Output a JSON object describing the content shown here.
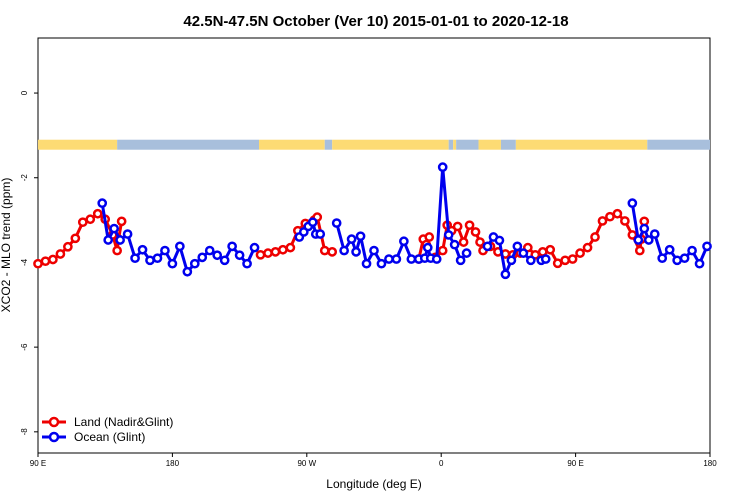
{
  "chart_data": {
    "type": "line",
    "title": "42.5N-47.5N October (Ver 10)   2015-01-01 to 2020-12-18",
    "xlabel": "Longitude (deg E)",
    "ylabel": "XCO2 - MLO trend (ppm)",
    "xlim": [
      90,
      540
    ],
    "ylim": [
      -8.5,
      1.3
    ],
    "x_ticks": [
      {
        "value": 90,
        "label": "90 E"
      },
      {
        "value": 180,
        "label": "180"
      },
      {
        "value": 270,
        "label": "90 W"
      },
      {
        "value": 360,
        "label": "0"
      },
      {
        "value": 450,
        "label": "90 E"
      },
      {
        "value": 540,
        "label": "180"
      }
    ],
    "y_ticks": [
      {
        "value": 0,
        "label": "0"
      },
      {
        "value": -2,
        "label": "-2"
      },
      {
        "value": -4,
        "label": "-4"
      },
      {
        "value": -6,
        "label": "-6"
      },
      {
        "value": -8,
        "label": "-8"
      }
    ],
    "landmask_y": -1.22,
    "landmask": [
      {
        "start": 90,
        "end": 143,
        "type": "land"
      },
      {
        "start": 143,
        "end": 238,
        "type": "ocean"
      },
      {
        "start": 238,
        "end": 282,
        "type": "land"
      },
      {
        "start": 282,
        "end": 287,
        "type": "ocean"
      },
      {
        "start": 287,
        "end": 365,
        "type": "land"
      },
      {
        "start": 365,
        "end": 368,
        "type": "ocean"
      },
      {
        "start": 368,
        "end": 370,
        "type": "land"
      },
      {
        "start": 370,
        "end": 385,
        "type": "ocean"
      },
      {
        "start": 385,
        "end": 400,
        "type": "land"
      },
      {
        "start": 400,
        "end": 410,
        "type": "ocean"
      },
      {
        "start": 410,
        "end": 498,
        "type": "land"
      },
      {
        "start": 498,
        "end": 540,
        "type": "ocean"
      }
    ],
    "legend_position": "bottom-left",
    "series": [
      {
        "name": "Land (Nadir&Glint)",
        "color": "#ee0000",
        "segments": [
          {
            "x": [
              90,
              95,
              100,
              105,
              110,
              115,
              120,
              125,
              130,
              135,
              140,
              143,
              144,
              146
            ],
            "y": [
              -4.03,
              -3.97,
              -3.93,
              -3.8,
              -3.63,
              -3.43,
              -3.05,
              -2.98,
              -2.85,
              -2.98,
              -3.35,
              -3.72,
              -3.45,
              -3.03
            ]
          },
          {
            "x": [
              239,
              244,
              249,
              254,
              259,
              264,
              269,
              273,
              275,
              277,
              282,
              287
            ],
            "y": [
              -3.82,
              -3.78,
              -3.75,
              -3.7,
              -3.65,
              -3.25,
              -3.08,
              -3.08,
              -3.0,
              -2.93,
              -3.72,
              -3.75
            ]
          },
          {
            "x": [
              345,
              348,
              350,
              352
            ],
            "y": [
              -3.92,
              -3.45,
              -3.58,
              -3.4
            ]
          },
          {
            "x": [
              356,
              361,
              364,
              367,
              371,
              375,
              379,
              383,
              386,
              388,
              393,
              398,
              403,
              408,
              413,
              418,
              423,
              428,
              433,
              438,
              443,
              448,
              453,
              458,
              463,
              468,
              473,
              478,
              483,
              488,
              493,
              494,
              496
            ],
            "y": [
              -3.88,
              -3.72,
              -3.12,
              -3.25,
              -3.15,
              -3.52,
              -3.12,
              -3.28,
              -3.52,
              -3.72,
              -3.62,
              -3.75,
              -3.8,
              -3.82,
              -3.78,
              -3.65,
              -3.82,
              -3.75,
              -3.7,
              -4.02,
              -3.95,
              -3.92,
              -3.78,
              -3.65,
              -3.4,
              -3.02,
              -2.92,
              -2.85,
              -3.02,
              -3.35,
              -3.72,
              -3.45,
              -3.03
            ]
          }
        ]
      },
      {
        "name": "Ocean (Glint)",
        "color": "#0000ee",
        "segments": [
          {
            "x": [
              133,
              137,
              141,
              145,
              150,
              155,
              160,
              165,
              170,
              175,
              180,
              185,
              190,
              195,
              200,
              205,
              210,
              215,
              220,
              225,
              230,
              235
            ],
            "y": [
              -2.6,
              -3.47,
              -3.2,
              -3.47,
              -3.33,
              -3.9,
              -3.7,
              -3.95,
              -3.9,
              -3.72,
              -4.03,
              -3.62,
              -4.22,
              -4.03,
              -3.88,
              -3.72,
              -3.83,
              -3.95,
              -3.62,
              -3.83,
              -4.03,
              -3.65
            ]
          },
          {
            "x": [
              265,
              268,
              271,
              274,
              276,
              279
            ],
            "y": [
              -3.4,
              -3.28,
              -3.15,
              -3.05,
              -3.33,
              -3.33
            ]
          },
          {
            "x": [
              290,
              295,
              300,
              303,
              306,
              310,
              315,
              320,
              325,
              330,
              335,
              340,
              345,
              349,
              351,
              353,
              357,
              361,
              365,
              369,
              373,
              377
            ],
            "y": [
              -3.07,
              -3.72,
              -3.45,
              -3.75,
              -3.38,
              -4.03,
              -3.72,
              -4.03,
              -3.92,
              -3.92,
              -3.5,
              -3.92,
              -3.92,
              -3.9,
              -3.65,
              -3.9,
              -3.92,
              -1.75,
              -3.35,
              -3.58,
              -3.95,
              -3.78
            ]
          },
          {
            "x": [
              391,
              395,
              399,
              403,
              407,
              411,
              415,
              420
            ],
            "y": [
              -3.62,
              -3.4,
              -3.48,
              -4.28,
              -3.95,
              -3.62,
              -3.78,
              -3.95
            ]
          },
          {
            "x": [
              427,
              430
            ],
            "y": [
              -3.95,
              -3.92
            ]
          },
          {
            "x": [
              488,
              492,
              496,
              499,
              503,
              508,
              513,
              518,
              523,
              528,
              533,
              538
            ],
            "y": [
              -2.6,
              -3.47,
              -3.2,
              -3.47,
              -3.33,
              -3.9,
              -3.7,
              -3.95,
              -3.9,
              -3.72,
              -4.03,
              -3.62
            ]
          }
        ]
      }
    ]
  },
  "colors": {
    "land": "#fddb74",
    "ocean": "#a8bfdc",
    "axis": "#000000"
  }
}
